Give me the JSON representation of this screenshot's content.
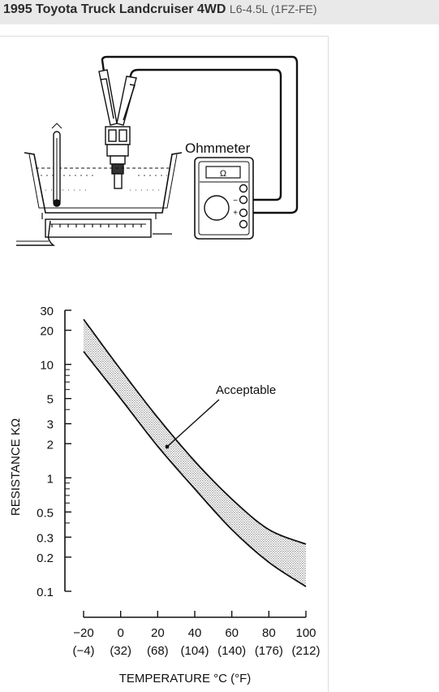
{
  "header": {
    "vehicle": "1995 Toyota Truck Landcruiser 4WD",
    "engine": "L6-4.5L (1FZ-FE)"
  },
  "diagram": {
    "meter_title": "Ohmmeter",
    "meter_display": "Ω",
    "terminal_neg": "−",
    "terminal_pos": "+"
  },
  "chart_data": {
    "type": "area",
    "title": "",
    "xlabel": "TEMPERATURE °C (°F)",
    "ylabel": "RESISTANCE KΩ",
    "x_ticks": [
      "−20",
      "0",
      "20",
      "40",
      "60",
      "80",
      "100"
    ],
    "x_ticks_f": [
      "(−4)",
      "(32)",
      "(68)",
      "(104)",
      "(140)",
      "(176)",
      "(212)"
    ],
    "y_ticks": [
      "30",
      "20",
      "10",
      "5",
      "3",
      "2",
      "1",
      "0.5",
      "0.3",
      "0.2",
      "0.1"
    ],
    "y_scale": "log",
    "xlim": [
      -20,
      100
    ],
    "ylim": [
      0.1,
      30
    ],
    "annotation": "Acceptable",
    "series": [
      {
        "x": [
          -20,
          0,
          20,
          40,
          60,
          80,
          100
        ],
        "values": [
          25.0,
          9.0,
          3.4,
          1.4,
          0.65,
          0.35,
          0.26
        ]
      },
      {
        "x": [
          -20,
          0,
          20,
          40,
          60,
          80,
          100
        ],
        "values": [
          13.0,
          5.0,
          1.9,
          0.8,
          0.35,
          0.18,
          0.11
        ]
      }
    ]
  }
}
